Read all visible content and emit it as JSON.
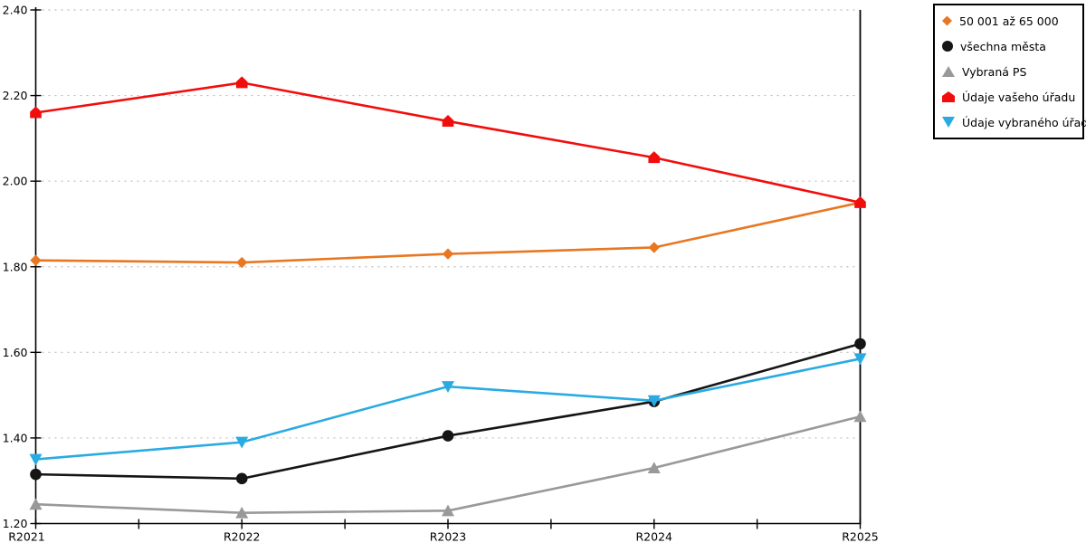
{
  "chart_data": {
    "type": "line",
    "title": "",
    "xlabel": "",
    "ylabel": "",
    "categories": [
      "R2021",
      "R2022",
      "R2023",
      "R2024",
      "R2025"
    ],
    "ylim": [
      1.2,
      2.4
    ],
    "y_ticks": [
      1.2,
      1.4,
      1.6,
      1.8,
      2.0,
      2.2,
      2.4
    ],
    "y_tick_format": "2-decimals",
    "grid": "dotted-horizontal",
    "grid_color": "#bdbdbd",
    "axis_color": "#000000",
    "legend_position": "outside-top-right",
    "series": [
      {
        "name": "50 001 až 65 000",
        "marker": "diamond",
        "color": "#e87722",
        "values": [
          1.815,
          1.81,
          1.83,
          1.845,
          1.95
        ]
      },
      {
        "name": "všechna města",
        "marker": "circle",
        "color": "#151515",
        "values": [
          1.315,
          1.305,
          1.405,
          1.485,
          1.62
        ]
      },
      {
        "name": "Vybraná PS",
        "marker": "triangle-up",
        "color": "#999999",
        "values": [
          1.245,
          1.225,
          1.23,
          1.33,
          1.45
        ]
      },
      {
        "name": "Údaje vašeho úřadu",
        "marker": "pentagon-up",
        "color": "#f20d0d",
        "values": [
          2.16,
          2.23,
          2.14,
          2.055,
          1.95
        ]
      },
      {
        "name": "Údaje vybraného úřadu",
        "marker": "triangle-down",
        "color": "#29abe2",
        "values": [
          1.35,
          1.39,
          1.52,
          1.487,
          1.585
        ]
      }
    ]
  }
}
